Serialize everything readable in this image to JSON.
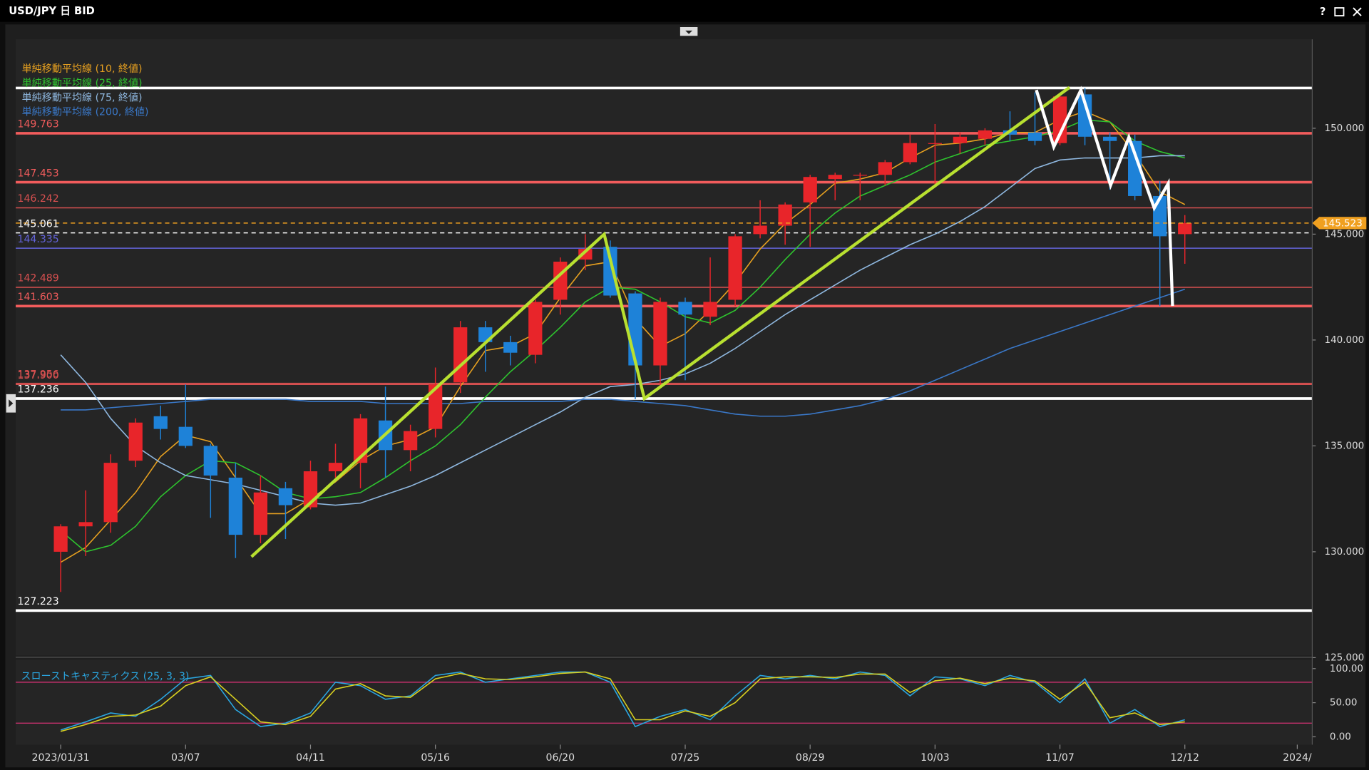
{
  "window": {
    "title": "USD/JPY 日 BID",
    "help": "?"
  },
  "chart_data": [
    {
      "type": "candlestick",
      "open": [
        130,
        131.2,
        131.4,
        134.3,
        136.4,
        135.9,
        135,
        133.5,
        130.8,
        133,
        132.1,
        133.8,
        134.2,
        136.2,
        134.8,
        135.8,
        138,
        140.6,
        139.9,
        139.3,
        141.9,
        143.8,
        144.4,
        142.2,
        138.8,
        141.8,
        141.1,
        141.9,
        145,
        145.4,
        146.5,
        147.6,
        147.8,
        147.8,
        148.4,
        149.3,
        149.3,
        149.5,
        149.9,
        149.8,
        149.3,
        151.6,
        149.6,
        149.4,
        146.8,
        145
      ],
      "high": [
        131.3,
        132.9,
        134.6,
        136.3,
        136.9,
        137.9,
        135.1,
        134.2,
        133.6,
        133.3,
        134.3,
        135.1,
        136.5,
        137.8,
        136.0,
        138.7,
        140.9,
        140.9,
        140.2,
        141.9,
        143.9,
        145.0,
        144.7,
        142.3,
        142.0,
        142.0,
        143.9,
        145.0,
        146.6,
        146.5,
        147.8,
        147.9,
        147.9,
        148.5,
        149.7,
        150.2,
        149.8,
        150.0,
        150.8,
        151.7,
        151.6,
        151.9,
        149.8,
        149.7,
        147.5,
        145.9
      ],
      "low": [
        128.1,
        129.8,
        130.9,
        134.0,
        135.3,
        134.9,
        131.6,
        129.7,
        130.4,
        130.6,
        132.0,
        133.5,
        133.0,
        133.5,
        133.8,
        135.4,
        137.5,
        138.5,
        138.8,
        138.9,
        141.2,
        143.3,
        142.0,
        137.2,
        137.8,
        138.1,
        140.7,
        141.6,
        144.8,
        144.5,
        144.4,
        146.6,
        146.6,
        147.3,
        148.3,
        147.3,
        148.8,
        149.2,
        149.4,
        149.2,
        149.2,
        149.2,
        147.1,
        146.6,
        141.6,
        143.6
      ],
      "close": [
        131.2,
        131.4,
        134.2,
        136.1,
        135.8,
        135,
        133.6,
        130.8,
        132.8,
        132.2,
        133.8,
        134.2,
        136.3,
        134.8,
        135.7,
        137.9,
        140.6,
        139.9,
        139.4,
        141.8,
        143.7,
        144.3,
        142.1,
        138.8,
        141.8,
        141.2,
        141.8,
        144.9,
        145.4,
        146.4,
        147.7,
        147.8,
        147.8,
        148.4,
        149.3,
        149.3,
        149.6,
        149.9,
        149.7,
        149.4,
        151.5,
        149.6,
        149.4,
        146.8,
        144.9,
        145.523
      ],
      "up_color": "#e8252a",
      "down_color": "#1e82d8",
      "series": [
        {
          "name": "単純移動平均線 (10, 終値)",
          "color": "#e6a020",
          "values": [
            129.5,
            130.2,
            131.5,
            132.8,
            134.5,
            135.5,
            135.2,
            133.5,
            131.8,
            131.8,
            132.5,
            133.3,
            134.3,
            135.0,
            135.3,
            135.9,
            137.8,
            139.5,
            139.7,
            140.3,
            142.0,
            143.5,
            143.7,
            141.0,
            139.7,
            140.3,
            141.4,
            142.7,
            144.3,
            145.5,
            146.4,
            147.4,
            147.6,
            147.9,
            148.6,
            149.2,
            149.3,
            149.5,
            149.8,
            149.8,
            150.4,
            150.8,
            150.3,
            148.8,
            147.0,
            146.4
          ]
        },
        {
          "name": "単純移動平均線 (25, 終値)",
          "color": "#2ec42e",
          "values": [
            131.0,
            130.0,
            130.3,
            131.2,
            132.6,
            133.6,
            134.3,
            134.2,
            133.6,
            132.8,
            132.5,
            132.6,
            132.8,
            133.5,
            134.3,
            135.0,
            136.0,
            137.3,
            138.5,
            139.5,
            140.6,
            141.8,
            142.5,
            142.4,
            141.8,
            141.1,
            140.8,
            141.4,
            142.5,
            143.8,
            145.0,
            146.0,
            146.8,
            147.3,
            147.8,
            148.4,
            148.8,
            149.2,
            149.4,
            149.6,
            149.9,
            150.4,
            150.3,
            149.4,
            148.9,
            148.6
          ]
        },
        {
          "name": "単純移動平均線 (75, 終値)",
          "color": "#8fb8e0",
          "values": [
            139.3,
            138.0,
            136.3,
            135.0,
            134.2,
            133.6,
            133.4,
            133.2,
            132.9,
            132.6,
            132.3,
            132.2,
            132.3,
            132.7,
            133.1,
            133.6,
            134.2,
            134.8,
            135.4,
            136.0,
            136.6,
            137.3,
            137.8,
            137.9,
            138.1,
            138.4,
            138.9,
            139.6,
            140.4,
            141.2,
            141.9,
            142.6,
            143.3,
            143.9,
            144.5,
            145.0,
            145.6,
            146.3,
            147.2,
            148.1,
            148.5,
            148.6,
            148.6,
            148.6,
            148.7,
            148.7
          ]
        },
        {
          "name": "単純移動平均線 (200, 終値)",
          "color": "#3a78c8",
          "values": [
            136.7,
            136.7,
            136.8,
            136.9,
            137.0,
            137.1,
            137.2,
            137.2,
            137.2,
            137.2,
            137.1,
            137.1,
            137.1,
            137.0,
            137.0,
            137.0,
            137.0,
            137.1,
            137.1,
            137.1,
            137.1,
            137.2,
            137.2,
            137.1,
            137.0,
            136.9,
            136.7,
            136.5,
            136.4,
            136.4,
            136.5,
            136.7,
            136.9,
            137.2,
            137.6,
            138.1,
            138.6,
            139.1,
            139.6,
            140.0,
            140.4,
            140.8,
            141.2,
            141.6,
            142.0,
            142.4
          ]
        }
      ],
      "levels": [
        {
          "value": 151.9,
          "color": "#ffffff",
          "width": 3
        },
        {
          "value": 149.763,
          "color": "#f25c5c",
          "width": 3
        },
        {
          "value": 147.453,
          "color": "#f25c5c",
          "width": 3
        },
        {
          "value": 146.242,
          "color": "#d85050",
          "width": 1.2
        },
        {
          "value": 145.061,
          "color": "#ffffff",
          "width": 1.2,
          "dash": "5 4"
        },
        {
          "value": 144.335,
          "color": "#6464dc",
          "width": 1.2
        },
        {
          "value": 142.489,
          "color": "#d85050",
          "width": 1.2
        },
        {
          "value": 141.603,
          "color": "#f25c5c",
          "width": 3
        },
        {
          "value": 137.956,
          "color": "#d85050",
          "width": 1.2
        },
        {
          "value": 137.9,
          "label": "137.900",
          "color": "#d85050",
          "width": 1.2
        },
        {
          "value": 137.236,
          "color": "#ffffff",
          "width": 3
        },
        {
          "value": 127.223,
          "color": "#ffffff",
          "width": 3
        }
      ],
      "last_price": {
        "value": 145.523,
        "color": "#f0a020"
      },
      "ylim": [
        125.1,
        154.2
      ],
      "yticks": [
        {
          "value": 125,
          "label": "125.000"
        },
        {
          "value": 130,
          "label": "130.000"
        },
        {
          "value": 135,
          "label": "135.000"
        },
        {
          "value": 140,
          "label": "140.000"
        },
        {
          "value": 145,
          "label": "145.000"
        },
        {
          "value": 150,
          "label": "150.000"
        }
      ],
      "xlim": [
        -1.8,
        50.1
      ],
      "xticks": [
        {
          "value": 0,
          "label": "2023/01/31"
        },
        {
          "value": 5,
          "label": "03/07"
        },
        {
          "value": 10,
          "label": "04/11"
        },
        {
          "value": 15,
          "label": "05/16"
        },
        {
          "value": 20,
          "label": "06/20"
        },
        {
          "value": 25,
          "label": "07/25"
        },
        {
          "value": 30,
          "label": "08/29"
        },
        {
          "value": 35,
          "label": "10/03"
        },
        {
          "value": 40,
          "label": "11/07"
        },
        {
          "value": 45,
          "label": "12/12"
        },
        {
          "value": 49.5,
          "label": "2024/"
        }
      ]
    },
    {
      "type": "line",
      "title": "スローストキャスティクス (25, 3, 3)",
      "series": [
        {
          "color": "#2aa6e0",
          "values": [
            10,
            22,
            35,
            30,
            55,
            85,
            90,
            40,
            15,
            20,
            35,
            80,
            75,
            55,
            60,
            90,
            95,
            80,
            85,
            90,
            95,
            95,
            80,
            15,
            30,
            40,
            25,
            60,
            90,
            85,
            90,
            85,
            95,
            90,
            60,
            88,
            85,
            75,
            90,
            80,
            50,
            85,
            20,
            40,
            15,
            25
          ]
        },
        {
          "color": "#d8d020",
          "values": [
            8,
            18,
            30,
            32,
            45,
            75,
            88,
            55,
            22,
            18,
            30,
            70,
            78,
            60,
            58,
            85,
            93,
            85,
            84,
            88,
            93,
            95,
            85,
            25,
            25,
            38,
            30,
            50,
            85,
            88,
            88,
            87,
            92,
            92,
            65,
            82,
            86,
            78,
            86,
            82,
            55,
            80,
            28,
            35,
            18,
            22
          ]
        }
      ],
      "levels": [
        {
          "value": 80,
          "color": "#c4306c"
        },
        {
          "value": 20,
          "color": "#c4306c"
        }
      ],
      "ylim": [
        -11.5,
        112.8
      ],
      "yticks": [
        {
          "value": 0,
          "label": "0.00"
        },
        {
          "value": 50,
          "label": "50.00"
        },
        {
          "value": 100,
          "label": "100.00"
        }
      ]
    }
  ]
}
